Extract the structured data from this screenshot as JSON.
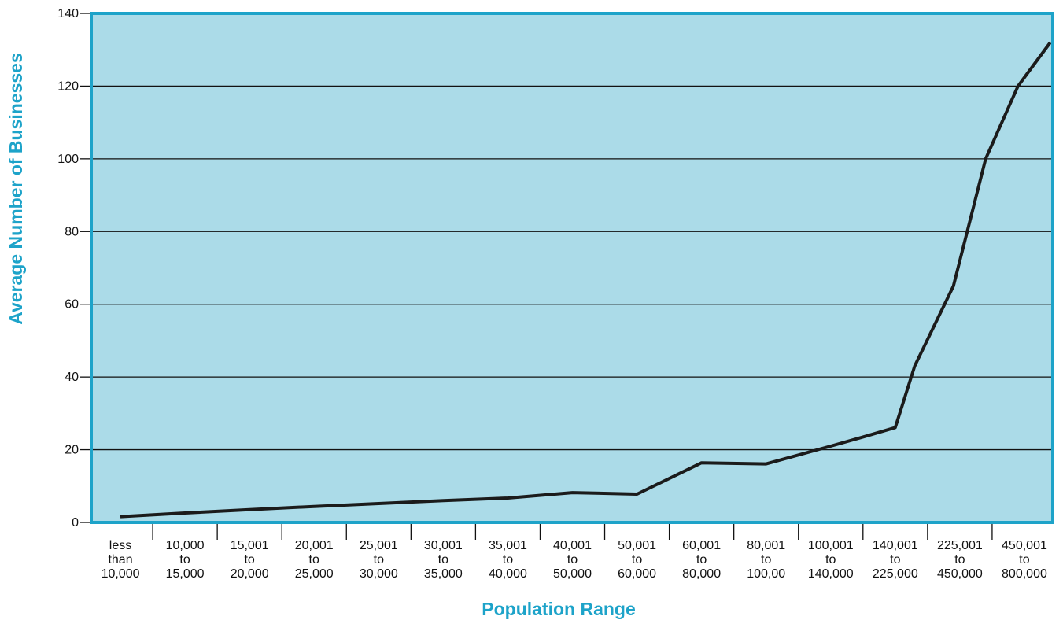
{
  "chart_data": {
    "type": "line",
    "title": "",
    "xlabel": "Population Range",
    "ylabel": "Average Number of Businesses",
    "ylim": [
      0,
      140
    ],
    "yticks": [
      0,
      20,
      40,
      60,
      80,
      100,
      120,
      140
    ],
    "grid": true,
    "colors": {
      "plot_background": "#abdbe8",
      "frame": "#1da3c9",
      "label_text": "#1da3c9",
      "line": "#1b1b1b",
      "gridline": "#111111"
    },
    "categories": [
      [
        "less",
        "than",
        "10,000"
      ],
      [
        "10,000",
        "to",
        "15,000"
      ],
      [
        "15,001",
        "to",
        "20,000"
      ],
      [
        "20,001",
        "to",
        "25,000"
      ],
      [
        "25,001",
        "to",
        "30,000"
      ],
      [
        "30,001",
        "to",
        "35,000"
      ],
      [
        "35,001",
        "to",
        "40,000"
      ],
      [
        "40,001",
        "to",
        "50,000"
      ],
      [
        "50,001",
        "to",
        "60,000"
      ],
      [
        "60,001",
        "to",
        "80,000"
      ],
      [
        "80,001",
        "to",
        "100,00"
      ],
      [
        "100,001",
        "to",
        "140,000"
      ],
      [
        "140,001",
        "to",
        "225,000"
      ],
      [
        "225,001",
        "to",
        "450,000"
      ],
      [
        "450,001",
        "to",
        "800,000"
      ]
    ],
    "series": [
      {
        "x": [
          0,
          1,
          2,
          3,
          4,
          5,
          6,
          7,
          8,
          9,
          10,
          11,
          11.5,
          12,
          12.3,
          12.9,
          13.4,
          13.9,
          14.4
        ],
        "values": [
          1.6,
          2.6,
          3.5,
          4.4,
          5.2,
          6.0,
          6.7,
          8.2,
          7.8,
          16.4,
          16.1,
          21.0,
          23.5,
          26.1,
          43.0,
          65.0,
          100.0,
          120.0,
          132.0
        ]
      }
    ]
  }
}
